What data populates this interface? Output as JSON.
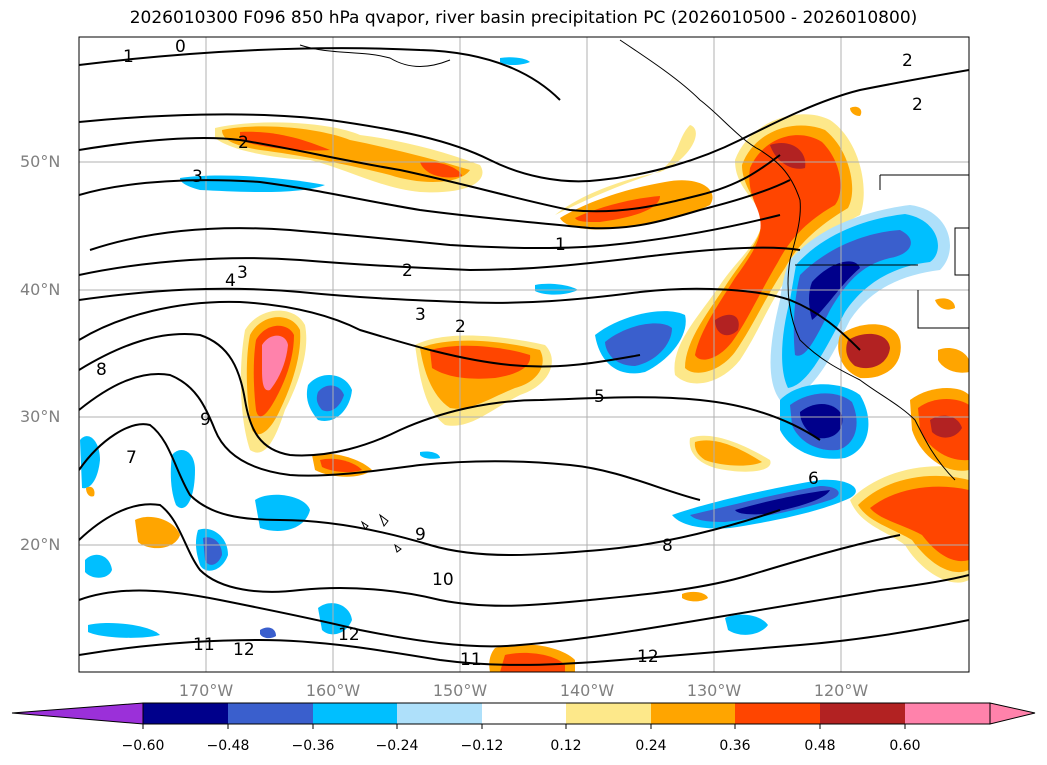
{
  "title": "2026010300 F096 850 hPa qvapor, river basin precipitation PC (2026010500 - 2026010800)",
  "lat_labels": [
    "50°N",
    "40°N",
    "30°N",
    "20°N"
  ],
  "lon_labels": [
    "170°W",
    "160°W",
    "150°W",
    "140°W",
    "130°W",
    "120°W"
  ],
  "colorbar": {
    "ticks": [
      "−0.60",
      "−0.48",
      "−0.36",
      "−0.24",
      "−0.12",
      "0.12",
      "0.24",
      "0.36",
      "0.48",
      "0.60"
    ],
    "colors": [
      "#9b30d9",
      "#00008b",
      "#3a5fcd",
      "#00bfff",
      "#aee0fa",
      "#ffffff",
      "#fde88a",
      "#ffa500",
      "#ff4500",
      "#b22222",
      "#ff82ab"
    ]
  },
  "contour_labels": [
    "0",
    "1",
    "2",
    "3",
    "4",
    "5",
    "6",
    "7",
    "8",
    "9",
    "10",
    "11",
    "12"
  ],
  "colors": {
    "land_border": "#000000",
    "grid": "#b0b0b0",
    "tick_text": "#808080"
  }
}
